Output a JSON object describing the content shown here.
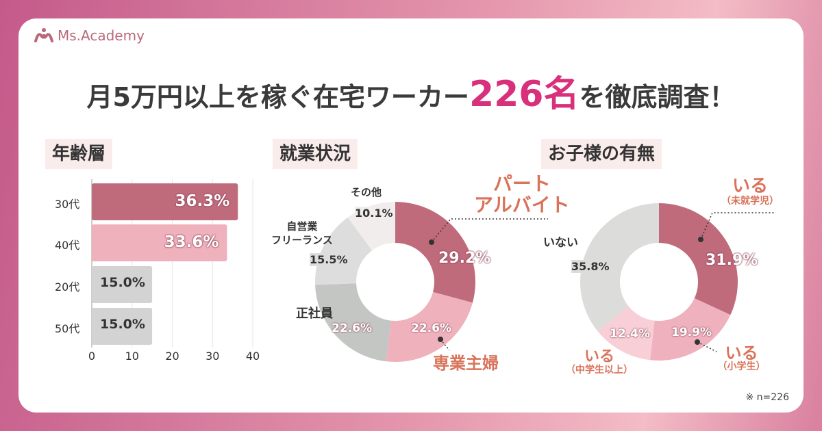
{
  "brand": {
    "logo_text": "Ms.Academy"
  },
  "title": {
    "prefix": "月5万円以上を稼ぐ在宅ワーカー",
    "highlight": "226名",
    "suffix": "を徹底調査！"
  },
  "note": "※ n=226",
  "colors": {
    "accent": "#d8307b",
    "dark_rose": "#c06b7c",
    "light_pink": "#efb1bc",
    "gray": "#d3d3d3",
    "label_orange": "#d9735a"
  },
  "chart_data": [
    {
      "type": "bar",
      "orientation": "horizontal",
      "title": "年齢層",
      "categories": [
        "30代",
        "40代",
        "20代",
        "50代"
      ],
      "values": [
        36.3,
        33.6,
        15.0,
        15.0
      ],
      "value_labels": [
        "36.3%",
        "33.6%",
        "15.0%",
        "15.0%"
      ],
      "colors": [
        "#c06b7c",
        "#efb1bc",
        "#d3d3d3",
        "#d3d3d3"
      ],
      "xlim": [
        0,
        40
      ],
      "xticks": [
        "0",
        "10",
        "20",
        "30",
        "40"
      ],
      "grid": true
    },
    {
      "type": "pie",
      "donut": true,
      "title": "就業状況",
      "slices": [
        {
          "label": "パート\nアルバイト",
          "value": 29.2,
          "value_label": "29.2%",
          "color": "#c06b7c"
        },
        {
          "label": "専業主婦",
          "value": 22.6,
          "value_label": "22.6%",
          "color": "#efb1bc"
        },
        {
          "label": "正社員",
          "value": 22.6,
          "value_label": "22.6%",
          "color": "#c3c6c2"
        },
        {
          "label": "自営業\nフリーランス",
          "value": 15.5,
          "value_label": "15.5%",
          "color": "#dddddd"
        },
        {
          "label": "その他",
          "value": 10.1,
          "value_label": "10.1%",
          "color": "#f1eded"
        }
      ]
    },
    {
      "type": "pie",
      "donut": true,
      "title": "お子様の有無",
      "slices": [
        {
          "label": "いる",
          "sublabel": "（未就学児）",
          "value": 31.9,
          "value_label": "31.9%",
          "color": "#c06b7c"
        },
        {
          "label": "いる",
          "sublabel": "（小学生）",
          "value": 19.9,
          "value_label": "19.9%",
          "color": "#eeb1bd"
        },
        {
          "label": "いる",
          "sublabel": "（中学生以上）",
          "value": 12.4,
          "value_label": "12.4%",
          "color": "#f8cfd6"
        },
        {
          "label": "いない",
          "value": 35.8,
          "value_label": "35.8%",
          "color": "#dcdcda"
        }
      ]
    }
  ]
}
